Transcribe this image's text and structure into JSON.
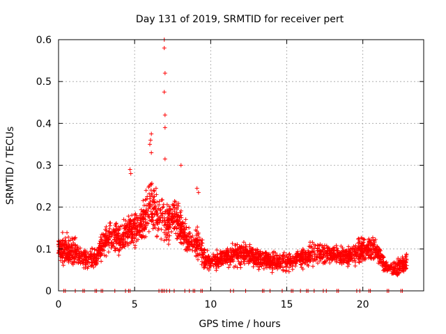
{
  "chart_data": {
    "type": "scatter",
    "title": "Day 131 of 2019, SRMTID for receiver pert",
    "xlabel": "GPS time / hours",
    "ylabel": "SRMTID / TECUs",
    "xlim": [
      0,
      24
    ],
    "ylim": [
      0,
      0.6
    ],
    "xticks": [
      0,
      5,
      10,
      15,
      20
    ],
    "xtick_labels": [
      "0",
      "5",
      "10",
      "15",
      "20"
    ],
    "yticks": [
      0,
      0.1,
      0.2,
      0.3,
      0.4,
      0.5,
      0.6
    ],
    "ytick_labels": [
      "0",
      "0.1",
      "0.2",
      "0.3",
      "0.4",
      "0.5",
      "0.6"
    ],
    "grid": true,
    "marker": "+",
    "series_color": "#ff0000",
    "envelope": {
      "x": [
        0,
        0.5,
        1,
        1.5,
        2,
        2.5,
        3,
        3.5,
        4,
        4.5,
        5,
        5.5,
        6,
        6.5,
        6.9,
        7.2,
        7.5,
        8,
        8.5,
        9,
        9.3,
        9.6,
        10,
        11,
        12,
        13,
        14,
        15,
        16,
        17,
        18,
        19,
        20,
        20.5,
        21,
        21.5,
        22,
        22.5,
        23
      ],
      "center": [
        0.1,
        0.1,
        0.09,
        0.08,
        0.075,
        0.08,
        0.12,
        0.13,
        0.12,
        0.14,
        0.15,
        0.16,
        0.2,
        0.18,
        0.17,
        0.16,
        0.18,
        0.15,
        0.12,
        0.12,
        0.1,
        0.08,
        0.07,
        0.08,
        0.09,
        0.08,
        0.07,
        0.07,
        0.08,
        0.09,
        0.09,
        0.08,
        0.1,
        0.1,
        0.09,
        0.06,
        0.05,
        0.06,
        0.07
      ],
      "spread": [
        0.04,
        0.05,
        0.05,
        0.03,
        0.03,
        0.03,
        0.05,
        0.05,
        0.05,
        0.06,
        0.06,
        0.07,
        0.09,
        0.07,
        0.07,
        0.06,
        0.06,
        0.06,
        0.05,
        0.06,
        0.05,
        0.04,
        0.03,
        0.03,
        0.04,
        0.03,
        0.03,
        0.03,
        0.03,
        0.04,
        0.03,
        0.03,
        0.04,
        0.04,
        0.03,
        0.02,
        0.02,
        0.03,
        0.03
      ]
    },
    "spikes": [
      {
        "x": 6.95,
        "y": 0.6
      },
      {
        "x": 6.95,
        "y": 0.58
      },
      {
        "x": 7.0,
        "y": 0.52
      },
      {
        "x": 6.95,
        "y": 0.475
      },
      {
        "x": 7.0,
        "y": 0.42
      },
      {
        "x": 7.0,
        "y": 0.39
      },
      {
        "x": 6.1,
        "y": 0.375
      },
      {
        "x": 6.05,
        "y": 0.36
      },
      {
        "x": 6.0,
        "y": 0.35
      },
      {
        "x": 6.1,
        "y": 0.33
      },
      {
        "x": 7.0,
        "y": 0.315
      },
      {
        "x": 8.05,
        "y": 0.3
      },
      {
        "x": 4.7,
        "y": 0.29
      },
      {
        "x": 4.75,
        "y": 0.28
      },
      {
        "x": 9.1,
        "y": 0.245
      },
      {
        "x": 9.2,
        "y": 0.235
      }
    ],
    "zero_points_x": [
      0.35,
      0.45,
      1.1,
      1.6,
      1.7,
      2.4,
      2.5,
      2.8,
      2.9,
      3.7,
      4.4,
      4.6,
      4.7,
      6.6,
      6.75,
      6.85,
      6.95,
      7.1,
      7.3,
      7.6,
      8.3,
      8.6,
      8.85,
      8.95,
      9.35,
      9.45,
      11.3,
      11.5,
      12.3,
      13.4,
      13.5,
      13.9,
      14.7,
      15.3,
      15.4,
      15.9,
      16.3,
      16.4,
      16.8,
      17.4,
      17.6,
      18.3,
      18.4,
      19.6,
      19.8,
      20.4,
      20.5,
      21.6,
      21.7,
      22.5,
      22.6
    ],
    "x_max_data": 22.9
  }
}
